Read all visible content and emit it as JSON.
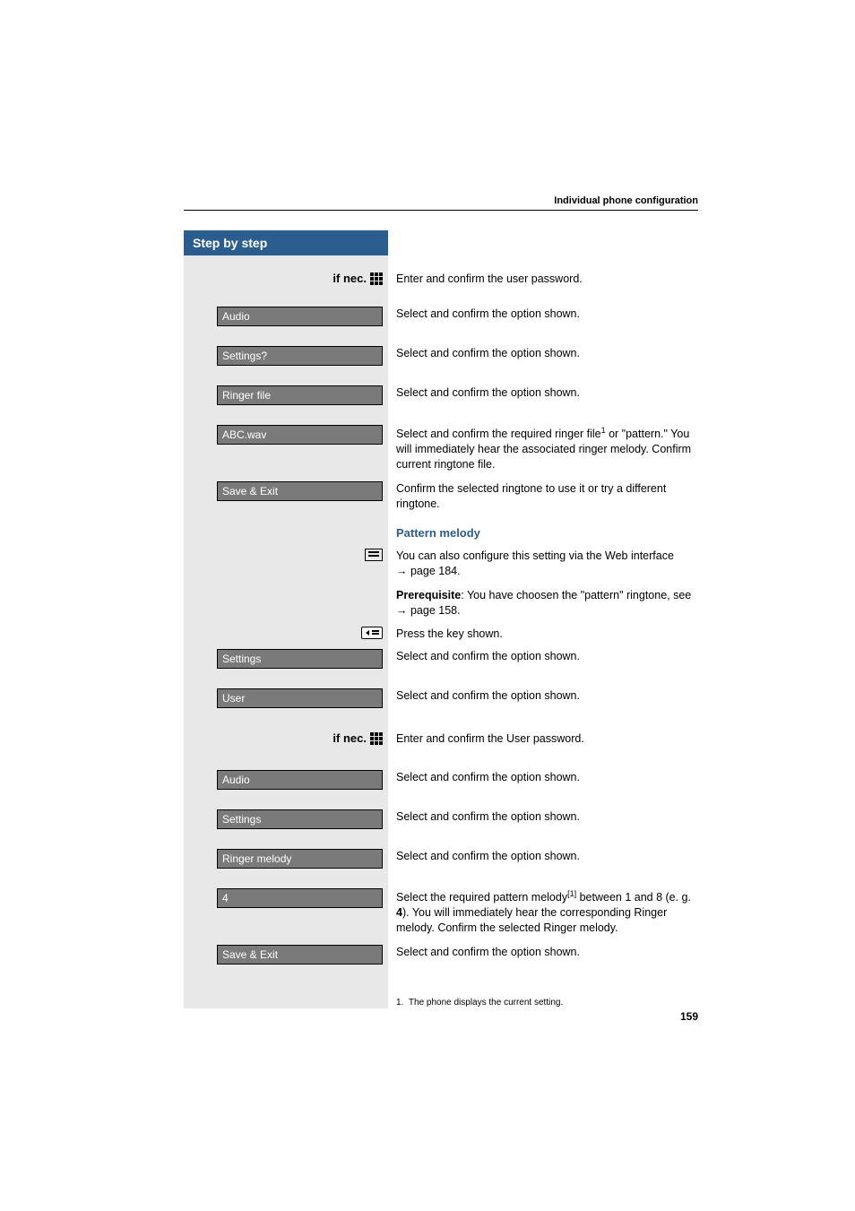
{
  "header": {
    "title": "Individual phone configuration"
  },
  "sidebar": {
    "heading": "Step by step"
  },
  "rows": [
    {
      "left_type": "ifnec",
      "left_text": "if nec.",
      "right": "Enter and confirm the user password.",
      "gap_before": 18
    },
    {
      "left_type": "box",
      "left_text": "Audio",
      "right": "Select and confirm the option shown.",
      "gap_before": 22
    },
    {
      "left_type": "box",
      "left_text": "Settings?",
      "right": "Select and confirm the option shown.",
      "gap_before": 22
    },
    {
      "left_type": "box",
      "left_text": "Ringer file",
      "right": "Select and confirm the option shown.",
      "gap_before": 22
    },
    {
      "left_type": "box",
      "left_text": "ABC.wav",
      "right": "Select and confirm the required ringer file<sup>1</sup> or \"pattern.\" You will immediately hear the associated ringer melody. Confirm current ringtone file.",
      "gap_before": 22
    },
    {
      "left_type": "box",
      "left_text": "Save & Exit",
      "right": "Confirm the selected ringtone to use it or try a different ringtone.",
      "gap_before": 10
    },
    {
      "left_type": "none",
      "right_class": "subheading",
      "right": "Pattern melody",
      "gap_before": 16
    },
    {
      "left_type": "webicon",
      "right": "You can also configure this setting via the Web interface <span class=\"arrow\">→</span>&nbsp;page&nbsp;184.",
      "gap_before": 8
    },
    {
      "left_type": "none",
      "right": "<b>Prerequisite</b>: You have choosen the \"pattern\" ringtone, see <span class=\"arrow\">→</span>&nbsp;page&nbsp;158.",
      "gap_before": 10
    },
    {
      "left_type": "keyicon",
      "right": "Press the key shown.",
      "gap_before": 10
    },
    {
      "left_type": "box",
      "left_text": "Settings",
      "right": "Select and confirm the option shown.",
      "gap_before": 8
    },
    {
      "left_type": "box",
      "left_text": "User",
      "right": "Select and confirm the option shown.",
      "gap_before": 22
    },
    {
      "left_type": "ifnec",
      "left_text": "if nec.",
      "right": "Enter and confirm the User password.",
      "gap_before": 26
    },
    {
      "left_type": "box",
      "left_text": "Audio",
      "right": "Select and confirm the option shown.",
      "gap_before": 26
    },
    {
      "left_type": "box",
      "left_text": "Settings",
      "right": "Select and confirm the option shown.",
      "gap_before": 22
    },
    {
      "left_type": "box",
      "left_text": "Ringer melody",
      "right": "Select and confirm the option shown.",
      "gap_before": 22
    },
    {
      "left_type": "box",
      "left_text": "4",
      "right": "Select the required pattern melody<sup>[1]</sup> between 1 and 8 (e. g. <b>4</b>). You will immediately hear the corresponding Ringer melody. Confirm the selected Ringer melody.",
      "gap_before": 22
    },
    {
      "left_type": "box",
      "left_text": "Save & Exit",
      "right": "Select and confirm the option shown.",
      "gap_before": 10
    },
    {
      "left_type": "none",
      "right_class": "footnote",
      "right": "1.&nbsp;&nbsp;The phone displays the current setting.",
      "gap_before": 36
    }
  ],
  "page_number": "159",
  "colors": {
    "sidebar_bg": "#e8e8e8",
    "header_bg": "#2c5d8f",
    "box_bg": "#7a7a7a",
    "link_color": "#2c5d8f"
  }
}
